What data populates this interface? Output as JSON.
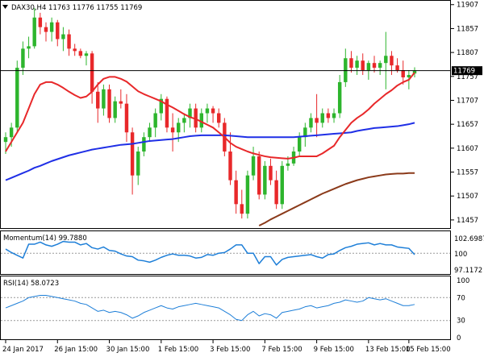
{
  "chart_data": [
    {
      "type": "candlestick",
      "panel": "price",
      "title": "DAX30,H4  11763 11776 11755 11769",
      "symbol": "DAX30,H4",
      "ohlc_label": {
        "open": 11763,
        "high": 11776,
        "low": 11755,
        "close": 11769
      },
      "ylim": [
        11440,
        11915
      ],
      "y_ticks": [
        11907,
        11857,
        11807,
        11757,
        11707,
        11657,
        11607,
        11557,
        11507,
        11457
      ],
      "current_price": 11769,
      "current_price_label": "11769",
      "colors": {
        "up": "#2db52d",
        "down": "#e8282a",
        "sma_fast": "#e8282a",
        "sma_mid": "#1f2fe6",
        "sma_slow": "#8b3a1a",
        "price_line": "#000000"
      },
      "candles": [
        [
          11620,
          11640,
          11595,
          11630
        ],
        [
          11630,
          11660,
          11610,
          11650
        ],
        [
          11650,
          11790,
          11640,
          11775
        ],
        [
          11775,
          11830,
          11760,
          11815
        ],
        [
          11815,
          11840,
          11795,
          11820
        ],
        [
          11820,
          11900,
          11815,
          11880
        ],
        [
          11880,
          11890,
          11845,
          11860
        ],
        [
          11860,
          11870,
          11830,
          11850
        ],
        [
          11850,
          11880,
          11830,
          11870
        ],
        [
          11870,
          11875,
          11820,
          11835
        ],
        [
          11835,
          11860,
          11810,
          11845
        ],
        [
          11845,
          11855,
          11800,
          11815
        ],
        [
          11815,
          11825,
          11800,
          11810
        ],
        [
          11810,
          11815,
          11795,
          11800
        ],
        [
          11800,
          11810,
          11780,
          11805
        ],
        [
          11805,
          11810,
          11700,
          11725
        ],
        [
          11725,
          11745,
          11660,
          11690
        ],
        [
          11690,
          11740,
          11675,
          11730
        ],
        [
          11730,
          11740,
          11660,
          11670
        ],
        [
          11670,
          11715,
          11660,
          11705
        ],
        [
          11705,
          11730,
          11690,
          11700
        ],
        [
          11700,
          11720,
          11620,
          11640
        ],
        [
          11640,
          11650,
          11510,
          11550
        ],
        [
          11550,
          11610,
          11530,
          11600
        ],
        [
          11600,
          11640,
          11590,
          11630
        ],
        [
          11630,
          11660,
          11620,
          11650
        ],
        [
          11650,
          11690,
          11630,
          11680
        ],
        [
          11680,
          11720,
          11665,
          11710
        ],
        [
          11710,
          11715,
          11640,
          11650
        ],
        [
          11650,
          11680,
          11600,
          11640
        ],
        [
          11640,
          11670,
          11620,
          11660
        ],
        [
          11660,
          11680,
          11640,
          11670
        ],
        [
          11670,
          11700,
          11650,
          11690
        ],
        [
          11690,
          11700,
          11640,
          11650
        ],
        [
          11650,
          11690,
          11640,
          11680
        ],
        [
          11680,
          11700,
          11660,
          11690
        ],
        [
          11690,
          11695,
          11660,
          11680
        ],
        [
          11680,
          11690,
          11650,
          11660
        ],
        [
          11660,
          11670,
          11590,
          11600
        ],
        [
          11600,
          11640,
          11530,
          11540
        ],
        [
          11540,
          11560,
          11470,
          11490
        ],
        [
          11490,
          11520,
          11460,
          11470
        ],
        [
          11470,
          11560,
          11460,
          11550
        ],
        [
          11550,
          11610,
          11540,
          11590
        ],
        [
          11590,
          11600,
          11500,
          11510
        ],
        [
          11510,
          11580,
          11500,
          11570
        ],
        [
          11570,
          11585,
          11530,
          11540
        ],
        [
          11540,
          11560,
          11480,
          11490
        ],
        [
          11490,
          11580,
          11480,
          11570
        ],
        [
          11570,
          11590,
          11560,
          11575
        ],
        [
          11575,
          11610,
          11570,
          11600
        ],
        [
          11600,
          11640,
          11590,
          11630
        ],
        [
          11630,
          11660,
          11610,
          11650
        ],
        [
          11650,
          11680,
          11640,
          11670
        ],
        [
          11670,
          11720,
          11630,
          11660
        ],
        [
          11660,
          11690,
          11650,
          11680
        ],
        [
          11680,
          11690,
          11660,
          11670
        ],
        [
          11670,
          11690,
          11660,
          11680
        ],
        [
          11680,
          11760,
          11670,
          11745
        ],
        [
          11745,
          11815,
          11735,
          11795
        ],
        [
          11795,
          11810,
          11765,
          11775
        ],
        [
          11775,
          11800,
          11760,
          11790
        ],
        [
          11790,
          11805,
          11760,
          11770
        ],
        [
          11770,
          11790,
          11750,
          11785
        ],
        [
          11785,
          11800,
          11765,
          11775
        ],
        [
          11775,
          11790,
          11760,
          11785
        ],
        [
          11785,
          11850,
          11730,
          11800
        ],
        [
          11800,
          11810,
          11760,
          11780
        ],
        [
          11780,
          11795,
          11765,
          11770
        ],
        [
          11770,
          11790,
          11740,
          11755
        ],
        [
          11755,
          11770,
          11730,
          11760
        ],
        [
          11763,
          11776,
          11755,
          11769
        ]
      ],
      "sma_fast": [
        11600,
        11620,
        11640,
        11660,
        11690,
        11720,
        11740,
        11745,
        11745,
        11740,
        11733,
        11725,
        11718,
        11712,
        11715,
        11725,
        11740,
        11752,
        11756,
        11756,
        11752,
        11746,
        11736,
        11726,
        11720,
        11715,
        11710,
        11705,
        11698,
        11692,
        11685,
        11678,
        11672,
        11668,
        11662,
        11656,
        11650,
        11640,
        11630,
        11618,
        11610,
        11605,
        11600,
        11596,
        11593,
        11590,
        11588,
        11587,
        11586,
        11585,
        11587,
        11590,
        11590,
        11590,
        11590,
        11596,
        11604,
        11612,
        11630,
        11645,
        11660,
        11670,
        11678,
        11688,
        11700,
        11710,
        11720,
        11728,
        11738,
        11745,
        11750,
        11765
      ],
      "sma_mid": [
        11540,
        11545,
        11550,
        11555,
        11560,
        11566,
        11570,
        11575,
        11580,
        11584,
        11588,
        11592,
        11595,
        11598,
        11601,
        11604,
        11606,
        11608,
        11610,
        11612,
        11614,
        11615,
        11616,
        11618,
        11620,
        11622,
        11623,
        11624,
        11625,
        11626,
        11628,
        11630,
        11632,
        11633,
        11634,
        11634,
        11634,
        11634,
        11634,
        11633,
        11632,
        11631,
        11630,
        11630,
        11630,
        11630,
        11630,
        11630,
        11630,
        11630,
        11630,
        11631,
        11632,
        11633,
        11634,
        11635,
        11636,
        11637,
        11638,
        11639,
        11640,
        11643,
        11645,
        11647,
        11649,
        11650,
        11651,
        11652,
        11653,
        11655,
        11657,
        11660
      ],
      "sma_slow": {
        "start_index": 44,
        "values": [
          11445,
          11451,
          11458,
          11464,
          11470,
          11476,
          11482,
          11488,
          11494,
          11500,
          11506,
          11512,
          11517,
          11522,
          11527,
          11532,
          11536,
          11540,
          11543,
          11546,
          11548,
          11550,
          11552,
          11553,
          11554,
          11554,
          11555,
          11555
        ]
      }
    },
    {
      "type": "line",
      "panel": "momentum",
      "title": "Momentum(14) 99.7880",
      "name": "Momentum(14)",
      "last_value": 99.788,
      "y_ticks_labels": [
        "102.6987",
        "100",
        "97.1172"
      ],
      "ylim": [
        97.1172,
        102.6987
      ],
      "color": "#1e7fd8",
      "values": [
        100.6,
        100.1,
        99.7,
        99.3,
        101.3,
        101.3,
        101.6,
        101.2,
        101.0,
        101.3,
        101.7,
        101.6,
        101.6,
        101.2,
        101.4,
        100.8,
        100.6,
        100.9,
        100.4,
        100.3,
        99.9,
        99.6,
        99.5,
        99.0,
        98.9,
        98.7,
        99.0,
        99.4,
        99.7,
        99.9,
        99.7,
        99.7,
        99.6,
        99.3,
        99.4,
        99.8,
        99.7,
        100.0,
        100.1,
        100.6,
        101.2,
        101.2,
        100.0,
        100.0,
        98.5,
        99.5,
        99.5,
        98.3,
        99.1,
        99.4,
        99.5,
        99.6,
        99.7,
        99.8,
        99.5,
        99.3,
        99.8,
        99.9,
        100.4,
        100.8,
        101.0,
        101.3,
        101.4,
        101.5,
        101.2,
        101.4,
        101.2,
        101.2,
        100.9,
        100.8,
        100.7,
        99.8
      ]
    },
    {
      "type": "line",
      "panel": "rsi",
      "title": "RSI(14) 58.0723",
      "name": "RSI(14)",
      "last_value": 58.0723,
      "y_ticks": [
        100,
        70,
        30,
        0
      ],
      "ylim": [
        0,
        100
      ],
      "levels": [
        70,
        30
      ],
      "color": "#1e7fd8",
      "values": [
        52,
        56,
        60,
        64,
        70,
        72,
        74,
        74,
        72,
        70,
        68,
        66,
        64,
        60,
        58,
        52,
        46,
        48,
        44,
        46,
        44,
        40,
        34,
        38,
        44,
        48,
        52,
        56,
        52,
        50,
        54,
        56,
        58,
        60,
        58,
        56,
        54,
        52,
        46,
        40,
        32,
        30,
        40,
        46,
        38,
        42,
        40,
        34,
        44,
        46,
        48,
        50,
        54,
        56,
        52,
        54,
        56,
        60,
        62,
        66,
        64,
        62,
        64,
        70,
        68,
        66,
        68,
        64,
        60,
        56,
        56,
        58
      ]
    }
  ],
  "x_axis": {
    "labels": [
      "24 Jan 2017",
      "26 Jan 15:00",
      "30 Jan 15:00",
      "1 Feb 15:00",
      "3 Feb 15:00",
      "7 Feb 15:00",
      "9 Feb 15:00",
      "13 Feb 15:00",
      "15 Feb 15:00"
    ],
    "label_candle_index": [
      0,
      9,
      18,
      27,
      36,
      45,
      54,
      63,
      70
    ]
  },
  "icons": {
    "symbol_menu": "triangle-down-icon"
  }
}
